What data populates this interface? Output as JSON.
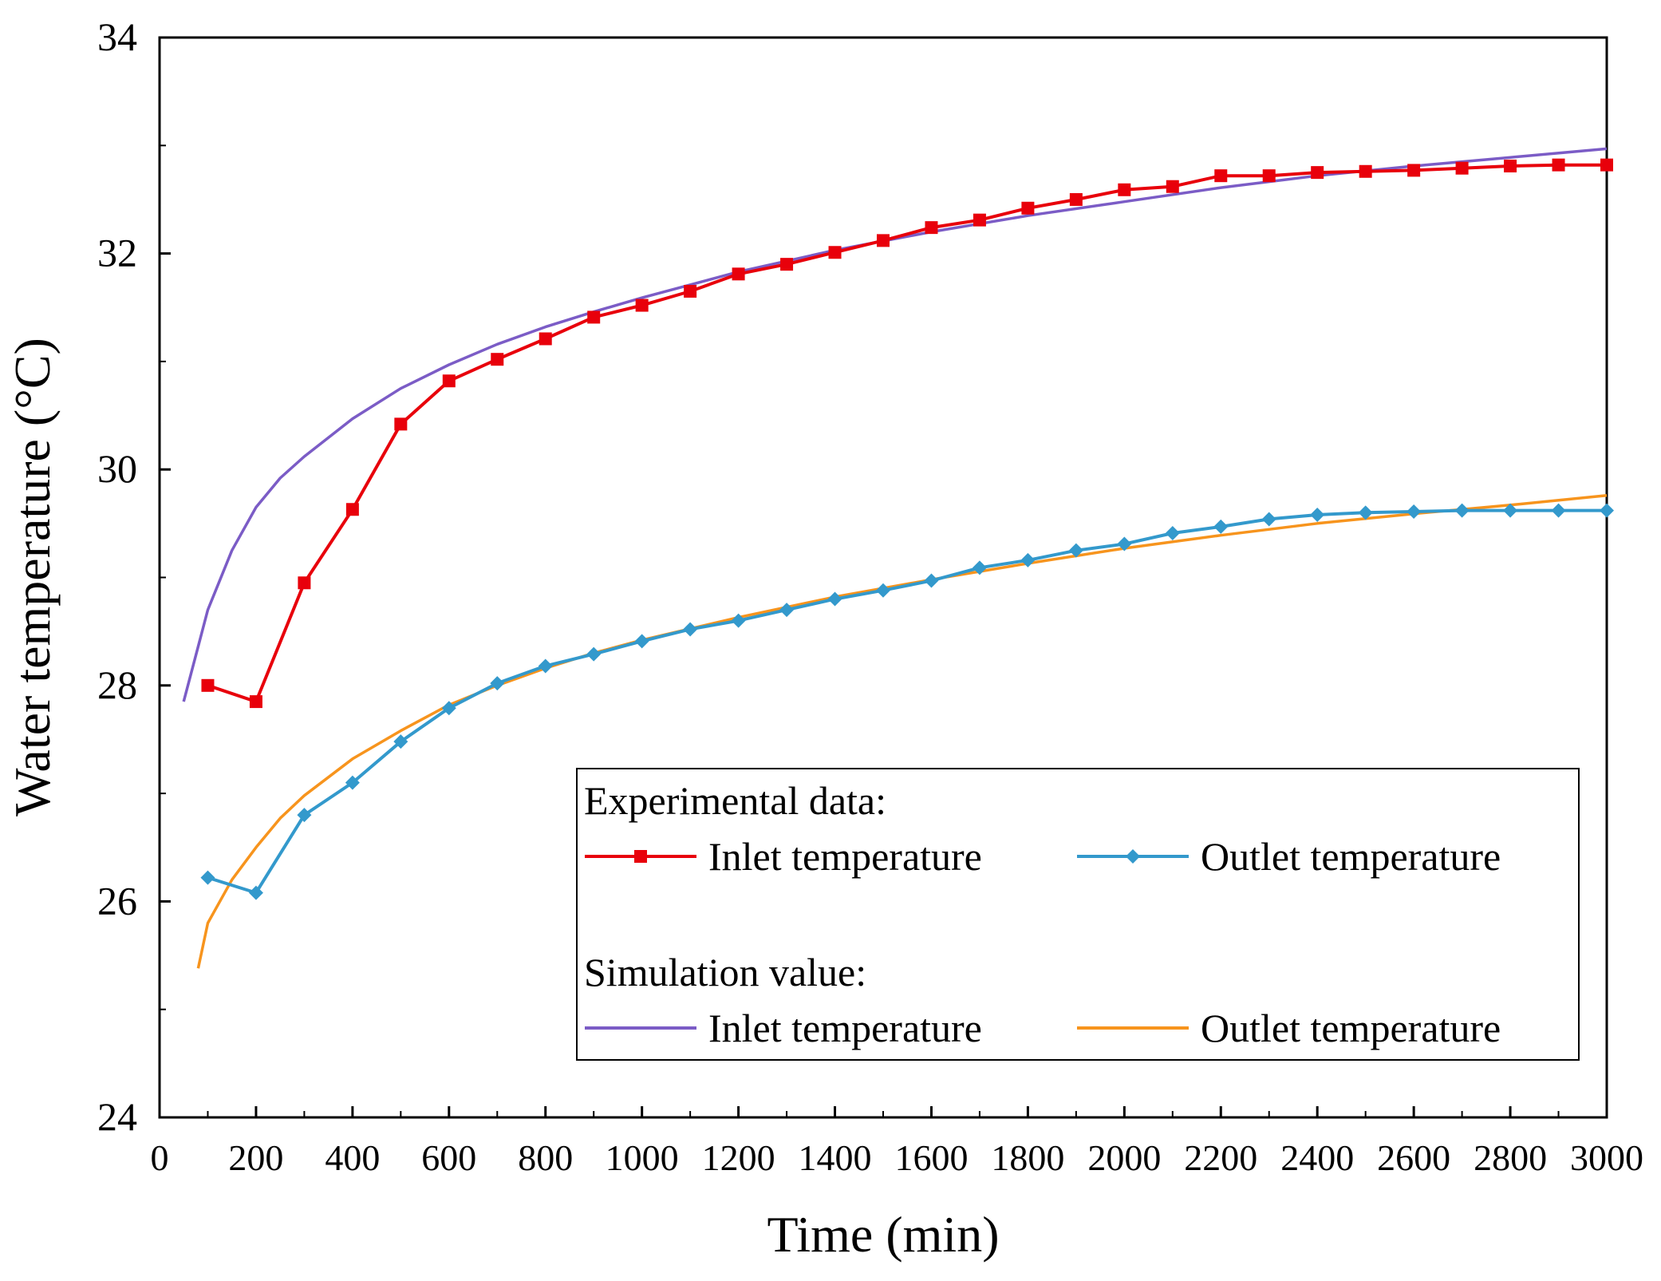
{
  "chart_data": {
    "type": "line",
    "title": "",
    "xlabel": "Time (min)",
    "ylabel": "Water temperature (°C)",
    "xlim": [
      0,
      3000
    ],
    "ylim": [
      24,
      34
    ],
    "x_ticks": [
      "0",
      "200",
      "400",
      "600",
      "800",
      "1000",
      "1200",
      "1400",
      "1600",
      "1800",
      "2000",
      "2200",
      "2400",
      "2600",
      "2800",
      "3000"
    ],
    "y_ticks": [
      "24",
      "26",
      "28",
      "30",
      "32",
      "34"
    ],
    "colors": {
      "exp_inlet": "#e8000b",
      "exp_outlet": "#3399cc",
      "sim_inlet": "#7b5cc6",
      "sim_outlet": "#f7941d"
    },
    "legend": {
      "position": "bottom-right",
      "group1_title": "Experimental data:",
      "group2_title": "Simulation value:",
      "exp_inlet_label": "Inlet temperature",
      "exp_outlet_label": "Outlet temperature",
      "sim_inlet_label": "Inlet temperature",
      "sim_outlet_label": "Outlet temperature"
    },
    "series": [
      {
        "name": "Experimental inlet temperature",
        "key": "exp_inlet",
        "marker": "square",
        "x": [
          100,
          200,
          300,
          400,
          500,
          600,
          700,
          800,
          900,
          1000,
          1100,
          1200,
          1300,
          1400,
          1500,
          1600,
          1700,
          1800,
          1900,
          2000,
          2100,
          2200,
          2300,
          2400,
          2500,
          2600,
          2700,
          2800,
          2900,
          3000
        ],
        "values": [
          28.0,
          27.85,
          28.95,
          29.63,
          30.42,
          30.82,
          31.02,
          31.21,
          31.41,
          31.52,
          31.65,
          31.81,
          31.9,
          32.01,
          32.12,
          32.24,
          32.31,
          32.42,
          32.5,
          32.59,
          32.62,
          32.72,
          32.72,
          32.75,
          32.76,
          32.77,
          32.79,
          32.81,
          32.82,
          32.82
        ]
      },
      {
        "name": "Experimental outlet temperature",
        "key": "exp_outlet",
        "marker": "diamond",
        "x": [
          100,
          200,
          300,
          400,
          500,
          600,
          700,
          800,
          900,
          1000,
          1100,
          1200,
          1300,
          1400,
          1500,
          1600,
          1700,
          1800,
          1900,
          2000,
          2100,
          2200,
          2300,
          2400,
          2500,
          2600,
          2700,
          2800,
          2900,
          3000
        ],
        "values": [
          26.22,
          26.08,
          26.8,
          27.1,
          27.48,
          27.79,
          28.02,
          28.18,
          28.29,
          28.41,
          28.52,
          28.6,
          28.7,
          28.8,
          28.88,
          28.97,
          29.09,
          29.16,
          29.25,
          29.31,
          29.41,
          29.47,
          29.54,
          29.58,
          29.6,
          29.61,
          29.62,
          29.62,
          29.62,
          29.62
        ]
      },
      {
        "name": "Simulated inlet temperature",
        "key": "sim_inlet",
        "marker": "none",
        "x": [
          50,
          100,
          150,
          200,
          250,
          300,
          400,
          500,
          600,
          700,
          800,
          900,
          1000,
          1200,
          1400,
          1600,
          1800,
          2000,
          2200,
          2400,
          2600,
          2800,
          3000
        ],
        "values": [
          27.85,
          28.7,
          29.25,
          29.65,
          29.92,
          30.12,
          30.47,
          30.75,
          30.97,
          31.16,
          31.32,
          31.46,
          31.59,
          31.83,
          32.03,
          32.2,
          32.35,
          32.48,
          32.61,
          32.72,
          32.81,
          32.89,
          32.97
        ]
      },
      {
        "name": "Simulated outlet temperature",
        "key": "sim_outlet",
        "marker": "none",
        "x": [
          80,
          100,
          150,
          200,
          250,
          300,
          400,
          500,
          600,
          700,
          800,
          900,
          1000,
          1200,
          1400,
          1600,
          1800,
          2000,
          2200,
          2400,
          2600,
          2800,
          3000
        ],
        "values": [
          25.38,
          25.8,
          26.2,
          26.5,
          26.77,
          26.98,
          27.32,
          27.58,
          27.82,
          28.0,
          28.16,
          28.3,
          28.42,
          28.63,
          28.82,
          28.98,
          29.13,
          29.27,
          29.39,
          29.5,
          29.59,
          29.67,
          29.76
        ]
      }
    ]
  }
}
